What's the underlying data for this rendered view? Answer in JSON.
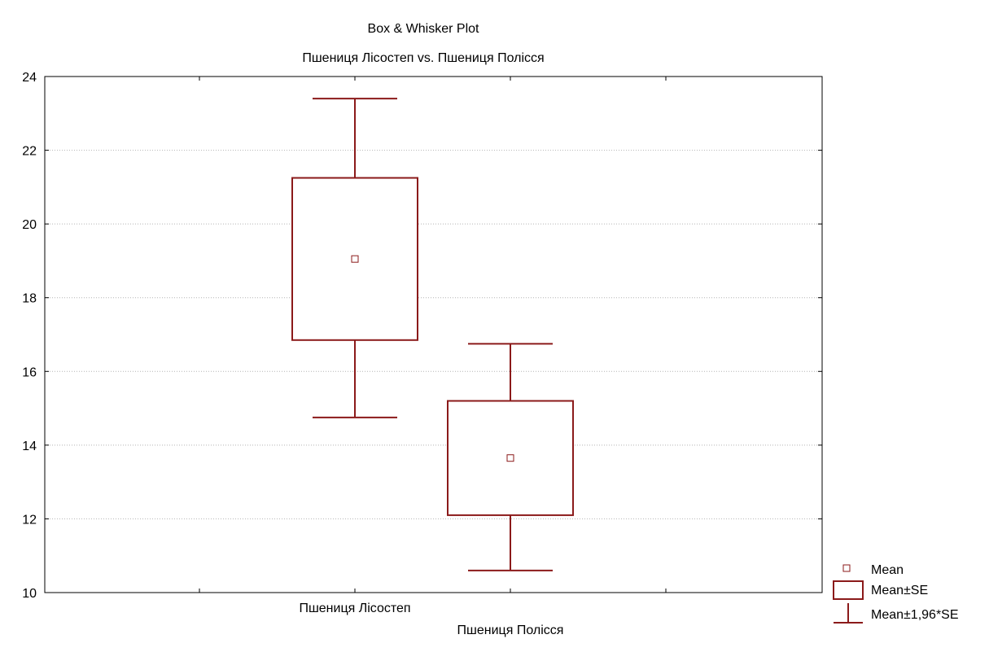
{
  "chart_data": {
    "type": "box",
    "title": "Box & Whisker Plot",
    "subtitle": "Пшениця Лісостеп vs. Пшениця Полісся",
    "categories": [
      "Пшениця Лісостеп",
      "Пшениця Полісся"
    ],
    "y_ticks": [
      "10",
      "12",
      "14",
      "16",
      "18",
      "20",
      "22",
      "24"
    ],
    "ylim": [
      10,
      24
    ],
    "grid": true,
    "legend_position": "bottom-right",
    "series": [
      {
        "category": "Пшениця Лісостеп",
        "mean": 19.05,
        "se_low": 16.85,
        "se_high": 21.25,
        "ci_low": 14.75,
        "ci_high": 23.4
      },
      {
        "category": "Пшениця Полісся",
        "mean": 13.65,
        "se_low": 12.1,
        "se_high": 15.2,
        "ci_low": 10.6,
        "ci_high": 16.75
      }
    ],
    "legend": [
      {
        "key": "mean",
        "label": "Mean"
      },
      {
        "key": "se",
        "label": "Mean±SE"
      },
      {
        "key": "ci",
        "label": "Mean±1,96*SE"
      }
    ],
    "colors": {
      "series": "#8b1a1a",
      "grid": "#b4b4b4",
      "axis": "#000000",
      "background": "#ffffff"
    }
  }
}
